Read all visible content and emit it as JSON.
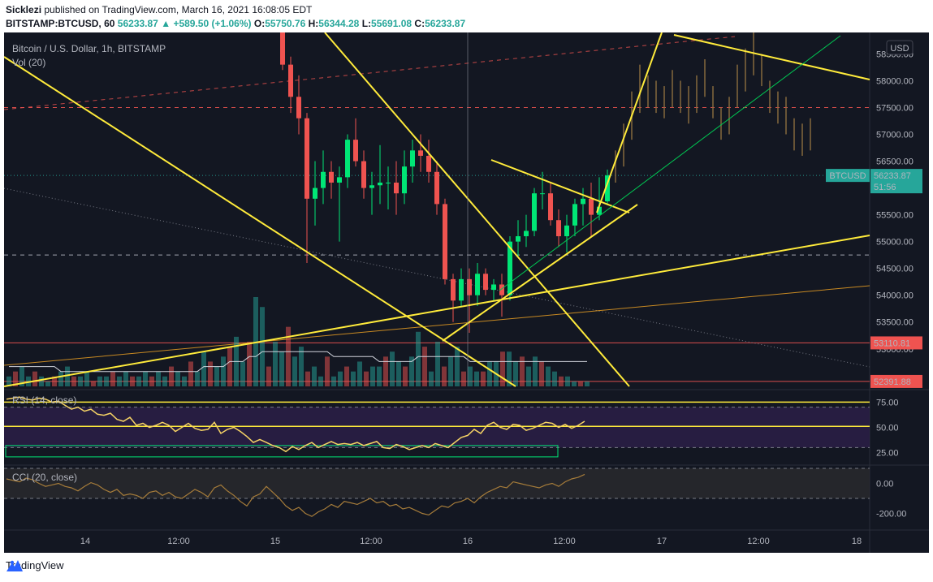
{
  "header": {
    "author": "Sicklezi",
    "published_text": "published on TradingView.com, March 16, 2021 16:08:05 EDT",
    "symbol": "BITSTAMP:BTCUSD, 60",
    "last": "56233.87",
    "change": "+589.50 (+1.06%)",
    "o_label": "O:",
    "o": "55750.76",
    "h_label": "H:",
    "h": "56344.28",
    "l_label": "L:",
    "l": "55691.08",
    "c_label": "C:",
    "c": "56233.87"
  },
  "pane_legends": {
    "main_title": "Bitcoin / U.S. Dollar, 1h, BITSTAMP",
    "volume": "Vol (20)",
    "rsi": "RSI (14, close)",
    "cci": "CCI (20, close)"
  },
  "price_axis": {
    "currency": "USD",
    "ticks": [
      "58500.00",
      "58000.00",
      "57500.00",
      "57000.00",
      "56500.00",
      "56000.00",
      "55500.00",
      "55000.00",
      "54500.00",
      "54000.00",
      "53500.00",
      "53000.00"
    ],
    "badges": {
      "symbol": "BTCUSD",
      "price": "56233.87",
      "countdown": "51:56",
      "red_level": "53110.81",
      "bottom_level": "52391.88"
    }
  },
  "rsi_axis": {
    "ticks": [
      "75.00",
      "50.00",
      "25.00"
    ]
  },
  "cci_axis": {
    "ticks": [
      "0.00",
      "-200.00"
    ]
  },
  "time_axis": {
    "ticks": [
      "14",
      "12:00",
      "15",
      "12:00",
      "16",
      "12:00",
      "17",
      "12:00",
      "18"
    ]
  },
  "footer": {
    "brand": "TradingView"
  },
  "colors": {
    "background": "#131722",
    "up": "#26a69a",
    "down": "#ef5350",
    "trendline": "#ffeb3b",
    "rsi_band": "#2d1f4a",
    "badge_green": "#26a69a"
  },
  "chart_data": [
    {
      "type": "candlestick",
      "title": "Bitcoin / U.S. Dollar, 1h, BITSTAMP",
      "ylabel": "USD",
      "ylim": [
        52300,
        58900
      ],
      "x_range": [
        "2021-03-13 14:00",
        "2021-03-18 02:00"
      ],
      "last_price": 56233.87,
      "candles": [
        {
          "t": "2021-03-15 00:00",
          "o": 59500,
          "h": 59800,
          "l": 58200,
          "c": 58300
        },
        {
          "t": "2021-03-15 01:00",
          "o": 58300,
          "h": 58450,
          "l": 57400,
          "c": 57700
        },
        {
          "t": "2021-03-15 02:00",
          "o": 57700,
          "h": 58100,
          "l": 57000,
          "c": 57300
        },
        {
          "t": "2021-03-15 03:00",
          "o": 57300,
          "h": 57400,
          "l": 54600,
          "c": 55800
        },
        {
          "t": "2021-03-15 04:00",
          "o": 55800,
          "h": 56500,
          "l": 55300,
          "c": 56000
        },
        {
          "t": "2021-03-15 05:00",
          "o": 56000,
          "h": 56700,
          "l": 55700,
          "c": 56300
        },
        {
          "t": "2021-03-15 06:00",
          "o": 56300,
          "h": 56500,
          "l": 55800,
          "c": 56100
        },
        {
          "t": "2021-03-15 07:00",
          "o": 56100,
          "h": 56400,
          "l": 55000,
          "c": 56200
        },
        {
          "t": "2021-03-15 08:00",
          "o": 56200,
          "h": 57000,
          "l": 56000,
          "c": 56900
        },
        {
          "t": "2021-03-15 09:00",
          "o": 56900,
          "h": 57300,
          "l": 56400,
          "c": 56500
        },
        {
          "t": "2021-03-15 10:00",
          "o": 56500,
          "h": 56700,
          "l": 55800,
          "c": 56000
        },
        {
          "t": "2021-03-15 11:00",
          "o": 56000,
          "h": 56300,
          "l": 55500,
          "c": 56050
        },
        {
          "t": "2021-03-15 12:00",
          "o": 56050,
          "h": 56800,
          "l": 55700,
          "c": 56100
        },
        {
          "t": "2021-03-15 13:00",
          "o": 56100,
          "h": 56400,
          "l": 55600,
          "c": 56100
        },
        {
          "t": "2021-03-15 14:00",
          "o": 56100,
          "h": 56500,
          "l": 55500,
          "c": 55900
        },
        {
          "t": "2021-03-15 15:00",
          "o": 55900,
          "h": 56700,
          "l": 55700,
          "c": 56400
        },
        {
          "t": "2021-03-15 16:00",
          "o": 56400,
          "h": 56900,
          "l": 56100,
          "c": 56700
        },
        {
          "t": "2021-03-15 17:00",
          "o": 56700,
          "h": 57000,
          "l": 56300,
          "c": 56600
        },
        {
          "t": "2021-03-15 18:00",
          "o": 56600,
          "h": 56900,
          "l": 56100,
          "c": 56300
        },
        {
          "t": "2021-03-15 19:00",
          "o": 56300,
          "h": 56500,
          "l": 55500,
          "c": 55700
        },
        {
          "t": "2021-03-15 20:00",
          "o": 55700,
          "h": 55800,
          "l": 54200,
          "c": 54300
        },
        {
          "t": "2021-03-15 21:00",
          "o": 54300,
          "h": 54400,
          "l": 53500,
          "c": 53900
        },
        {
          "t": "2021-03-15 22:00",
          "o": 53900,
          "h": 54500,
          "l": 53800,
          "c": 54300
        },
        {
          "t": "2021-03-15 23:00",
          "o": 54300,
          "h": 54500,
          "l": 53300,
          "c": 54000
        },
        {
          "t": "2021-03-16 00:00",
          "o": 54000,
          "h": 54600,
          "l": 53800,
          "c": 54400
        },
        {
          "t": "2021-03-16 01:00",
          "o": 54400,
          "h": 54500,
          "l": 54000,
          "c": 54100
        },
        {
          "t": "2021-03-16 02:00",
          "o": 54100,
          "h": 54300,
          "l": 53900,
          "c": 54200
        },
        {
          "t": "2021-03-16 03:00",
          "o": 54200,
          "h": 54400,
          "l": 53600,
          "c": 54000
        },
        {
          "t": "2021-03-16 04:00",
          "o": 54000,
          "h": 55100,
          "l": 53900,
          "c": 55000
        },
        {
          "t": "2021-03-16 05:00",
          "o": 55000,
          "h": 55400,
          "l": 54700,
          "c": 55100
        },
        {
          "t": "2021-03-16 06:00",
          "o": 55100,
          "h": 55500,
          "l": 54900,
          "c": 55200
        },
        {
          "t": "2021-03-16 07:00",
          "o": 55200,
          "h": 56000,
          "l": 55100,
          "c": 55900
        },
        {
          "t": "2021-03-16 08:00",
          "o": 55900,
          "h": 56300,
          "l": 55600,
          "c": 55900
        },
        {
          "t": "2021-03-16 09:00",
          "o": 55900,
          "h": 56100,
          "l": 55300,
          "c": 55400
        },
        {
          "t": "2021-03-16 10:00",
          "o": 55400,
          "h": 55600,
          "l": 54900,
          "c": 55100
        },
        {
          "t": "2021-03-16 11:00",
          "o": 55100,
          "h": 55500,
          "l": 54800,
          "c": 55300
        },
        {
          "t": "2021-03-16 12:00",
          "o": 55300,
          "h": 55800,
          "l": 55100,
          "c": 55700
        },
        {
          "t": "2021-03-16 13:00",
          "o": 55700,
          "h": 56000,
          "l": 55300,
          "c": 55800
        },
        {
          "t": "2021-03-16 14:00",
          "o": 55800,
          "h": 56100,
          "l": 55100,
          "c": 55500
        },
        {
          "t": "2021-03-16 15:00",
          "o": 55500,
          "h": 56200,
          "l": 55400,
          "c": 55650
        },
        {
          "t": "2021-03-16 16:00",
          "o": 55750.76,
          "h": 56344.28,
          "l": 55691.08,
          "c": 56233.87
        }
      ],
      "projection_bars": [
        {
          "t": "2021-03-16 17:00",
          "h": 56700,
          "l": 56100
        },
        {
          "t": "2021-03-16 18:00",
          "h": 57200,
          "l": 56400
        },
        {
          "t": "2021-03-16 19:00",
          "h": 57800,
          "l": 56900
        },
        {
          "t": "2021-03-16 20:00",
          "h": 58300,
          "l": 57400
        },
        {
          "t": "2021-03-16 21:00",
          "h": 58100,
          "l": 57500
        },
        {
          "t": "2021-03-16 22:00",
          "h": 58000,
          "l": 57400
        },
        {
          "t": "2021-03-16 23:00",
          "h": 57900,
          "l": 57300
        },
        {
          "t": "2021-03-17 00:00",
          "h": 58200,
          "l": 57500
        },
        {
          "t": "2021-03-17 01:00",
          "h": 58000,
          "l": 57400
        },
        {
          "t": "2021-03-17 02:00",
          "h": 57900,
          "l": 57200
        },
        {
          "t": "2021-03-17 03:00",
          "h": 58100,
          "l": 57400
        },
        {
          "t": "2021-03-17 04:00",
          "h": 58400,
          "l": 57700
        },
        {
          "t": "2021-03-17 05:00",
          "h": 57900,
          "l": 57300
        },
        {
          "t": "2021-03-17 06:00",
          "h": 57500,
          "l": 56900
        },
        {
          "t": "2021-03-17 07:00",
          "h": 57700,
          "l": 57000
        },
        {
          "t": "2021-03-17 08:00",
          "h": 58300,
          "l": 57500
        },
        {
          "t": "2021-03-17 09:00",
          "h": 58600,
          "l": 57800
        },
        {
          "t": "2021-03-17 10:00",
          "h": 58900,
          "l": 58100
        },
        {
          "t": "2021-03-17 11:00",
          "h": 58500,
          "l": 57900
        },
        {
          "t": "2021-03-17 12:00",
          "h": 58000,
          "l": 57400
        },
        {
          "t": "2021-03-17 13:00",
          "h": 57800,
          "l": 57200
        },
        {
          "t": "2021-03-17 14:00",
          "h": 57700,
          "l": 57000
        },
        {
          "t": "2021-03-17 15:00",
          "h": 57300,
          "l": 56700
        },
        {
          "t": "2021-03-17 16:00",
          "h": 57200,
          "l": 56600
        },
        {
          "t": "2021-03-17 17:00",
          "h": 57300,
          "l": 56700
        }
      ],
      "horizontal_levels": [
        {
          "price": 57500,
          "style": "dashed",
          "color": "#ef5350"
        },
        {
          "price": 56233.87,
          "style": "dotted",
          "color": "#26a69a"
        },
        {
          "price": 54750,
          "style": "dashed",
          "color": "#b2b5be"
        },
        {
          "price": 53110.81,
          "style": "solid",
          "color": "#ef5350"
        },
        {
          "price": 52391.88,
          "style": "solid",
          "color": "#ef5350"
        }
      ]
    },
    {
      "type": "bar",
      "title": "Vol (20)",
      "values": [
        2,
        3,
        4,
        2,
        3,
        2,
        1,
        2,
        3,
        4,
        2,
        2,
        3,
        1,
        2,
        2,
        3,
        2,
        3,
        2,
        2,
        3,
        2,
        3,
        2,
        4,
        3,
        2,
        5,
        3,
        7,
        5,
        4,
        6,
        8,
        10,
        5,
        9,
        18,
        16,
        4,
        9,
        7,
        12,
        6,
        8,
        3,
        4,
        2,
        6,
        2,
        3,
        4,
        3,
        5,
        3,
        4,
        4,
        6,
        7,
        5,
        4,
        6,
        11,
        8,
        3,
        9,
        4,
        6,
        8,
        3,
        4,
        3,
        3,
        5,
        5,
        7,
        7,
        5,
        6,
        4,
        6,
        5,
        4,
        3,
        2,
        2,
        1,
        1,
        1
      ],
      "ma": [
        4,
        4,
        4,
        4,
        4,
        4,
        4,
        4,
        3,
        3,
        3,
        3,
        3,
        3,
        3,
        3,
        3,
        3,
        3,
        3,
        3,
        3,
        3,
        3,
        3,
        3,
        3,
        3,
        3,
        3,
        4,
        4,
        4,
        4,
        5,
        5,
        5,
        6,
        6,
        7,
        7,
        7,
        7,
        7,
        7,
        7,
        7,
        7,
        7,
        7,
        6,
        6,
        6,
        6,
        6,
        6,
        6,
        5,
        5,
        5,
        5,
        5,
        5,
        6,
        6,
        6,
        6,
        6,
        6,
        6,
        6,
        5,
        5,
        5,
        5,
        5,
        5,
        5,
        5,
        5,
        5,
        5,
        5,
        5,
        5,
        5,
        5,
        5,
        5,
        5
      ]
    },
    {
      "type": "line",
      "title": "RSI (14, close)",
      "ylim": [
        15,
        85
      ],
      "levels": [
        70,
        30
      ],
      "values": [
        78,
        79,
        80,
        78,
        77,
        79,
        78,
        75,
        76,
        72,
        68,
        70,
        66,
        68,
        63,
        62,
        64,
        58,
        56,
        60,
        52,
        54,
        50,
        52,
        55,
        52,
        46,
        50,
        54,
        49,
        47,
        48,
        55,
        44,
        48,
        50,
        46,
        41,
        35,
        38,
        35,
        32,
        30,
        26,
        31,
        28,
        32,
        35,
        30,
        33,
        36,
        33,
        34,
        33,
        35,
        32,
        34,
        36,
        30,
        29,
        33,
        31,
        28,
        30,
        32,
        30,
        34,
        32,
        30,
        35,
        40,
        42,
        48,
        44,
        52,
        55,
        50,
        48,
        53,
        52,
        47,
        49,
        52,
        55,
        54,
        50,
        53,
        49,
        52,
        56
      ]
    },
    {
      "type": "line",
      "title": "CCI (20, close)",
      "ylim": [
        -300,
        100
      ],
      "levels": [
        100,
        -100
      ],
      "values": [
        30,
        20,
        10,
        35,
        25,
        0,
        -20,
        -10,
        0,
        -20,
        -30,
        -50,
        -20,
        5,
        -10,
        -40,
        -60,
        -40,
        -80,
        -70,
        -80,
        -100,
        -60,
        -50,
        -80,
        -60,
        -90,
        -100,
        -70,
        -40,
        -60,
        -90,
        -30,
        -10,
        -50,
        -80,
        -120,
        -150,
        -90,
        -70,
        -20,
        -60,
        -100,
        -150,
        -180,
        -160,
        -200,
        -220,
        -190,
        -170,
        -140,
        -160,
        -120,
        -130,
        -140,
        -120,
        -100,
        -130,
        -120,
        -150,
        -140,
        -170,
        -160,
        -180,
        -200,
        -210,
        -180,
        -150,
        -160,
        -130,
        -120,
        -100,
        -130,
        -90,
        -60,
        -40,
        -20,
        -30,
        10,
        0,
        -10,
        -20,
        -30,
        -10,
        0,
        -20,
        10,
        30,
        40,
        60
      ]
    }
  ]
}
